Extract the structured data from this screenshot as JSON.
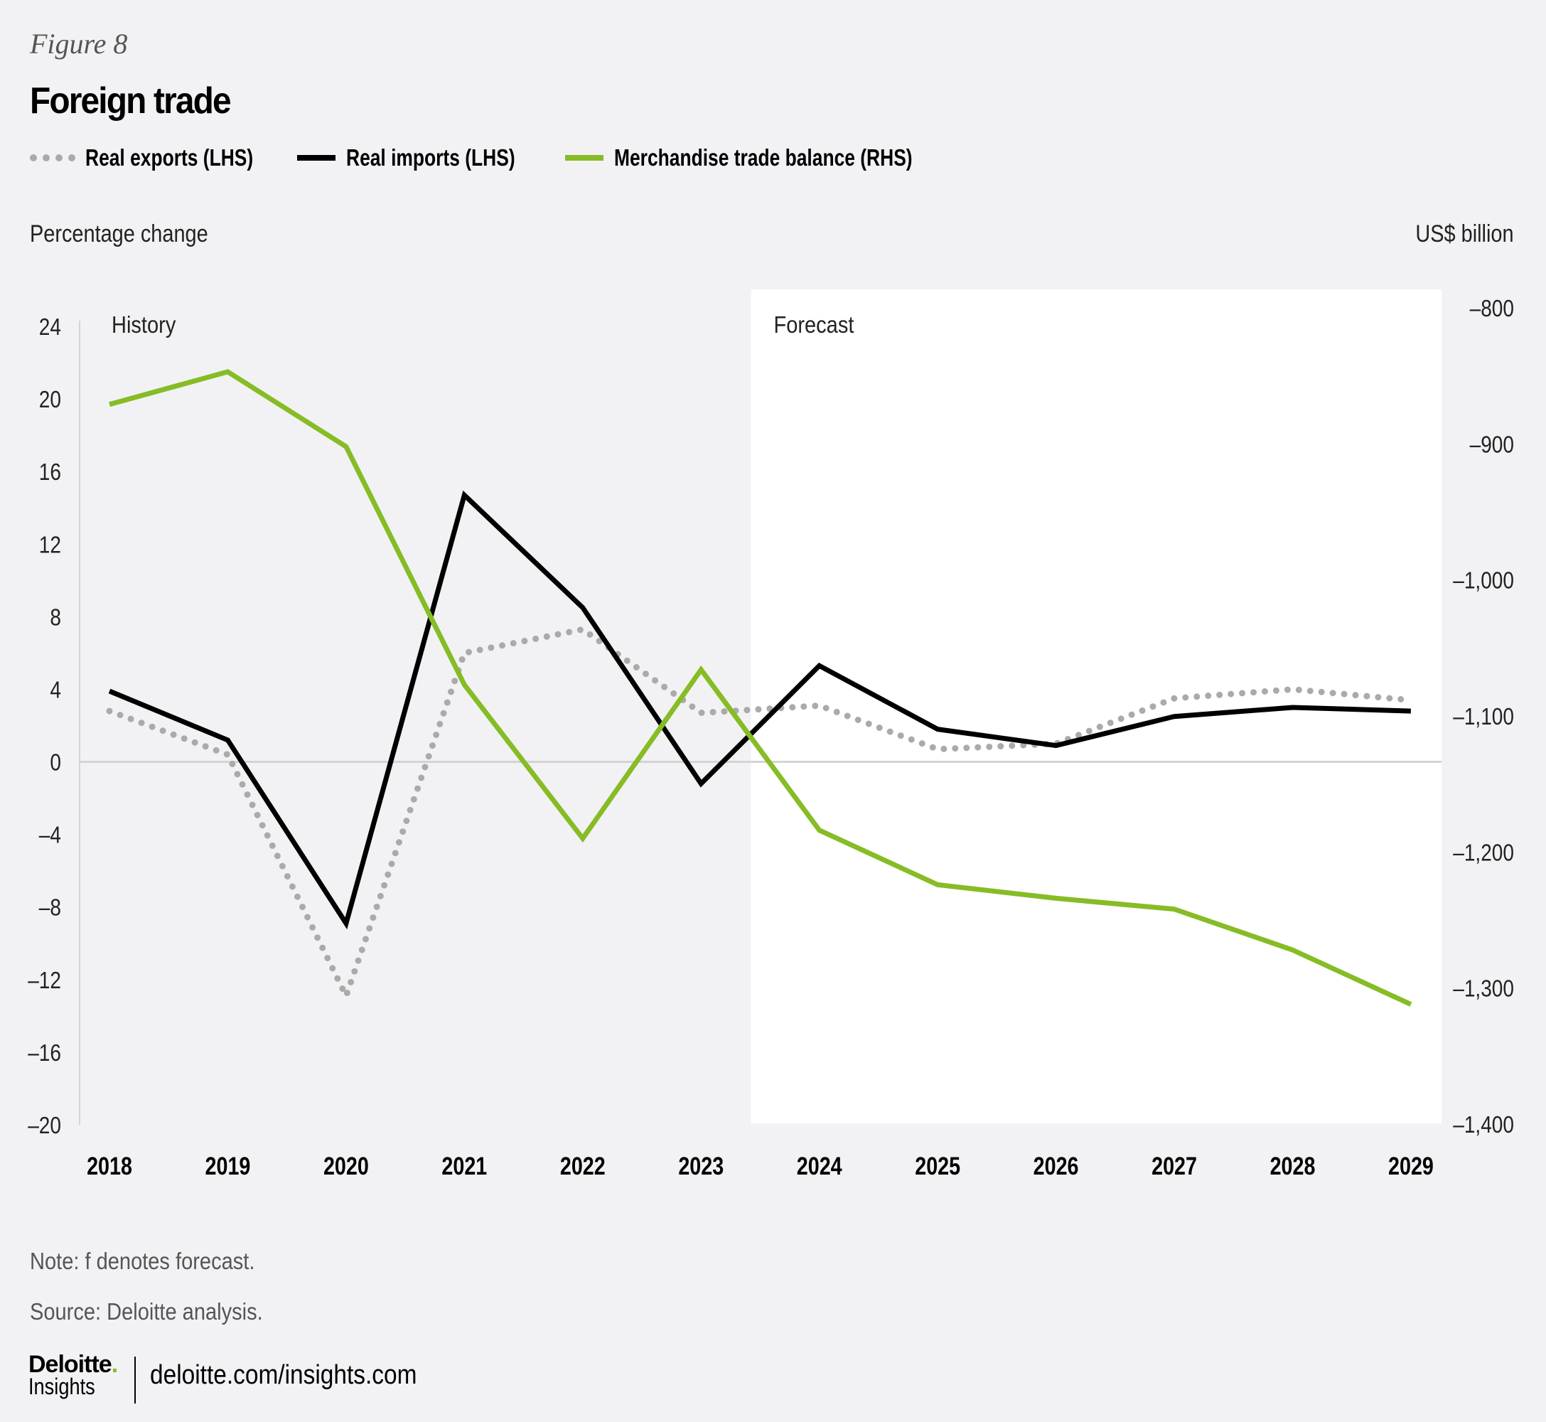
{
  "header": {
    "figure_label": "Figure 8",
    "title": "Foreign trade"
  },
  "legend": [
    {
      "label": "Real exports (LHS)",
      "style": "dotted",
      "color": "#aaaaaa"
    },
    {
      "label": "Real imports (LHS)",
      "style": "solid",
      "color": "#000000"
    },
    {
      "label": "Merchandise trade balance (RHS)",
      "style": "solid",
      "color": "#86bc25"
    }
  ],
  "axis_titles": {
    "left": "Percentage change",
    "right": "US$ billion"
  },
  "region_labels": {
    "history": "History",
    "forecast": "Forecast"
  },
  "chart_data": {
    "type": "line",
    "title": "Foreign trade",
    "x": [
      "2018",
      "2019",
      "2020",
      "2021",
      "2022",
      "2023",
      "2024",
      "2025",
      "2026",
      "2027",
      "2028",
      "2029"
    ],
    "forecast_start": "2024",
    "left_axis": {
      "label": "Percentage change",
      "ylim": [
        -20,
        24
      ],
      "ticks": [
        24,
        20,
        16,
        12,
        8,
        4,
        0,
        -4,
        -8,
        -12,
        -16,
        -20
      ],
      "tick_labels": [
        "24",
        "20",
        "16",
        "12",
        "8",
        "4",
        "0",
        "–4",
        "–8",
        "–12",
        "–16",
        "–20"
      ]
    },
    "right_axis": {
      "label": "US$ billion",
      "ylim": [
        -1400,
        -800
      ],
      "ticks": [
        -800,
        -900,
        -1000,
        -1100,
        -1200,
        -1300,
        -1400
      ],
      "tick_labels": [
        "–800",
        "–900",
        "–1,000",
        "–1,100",
        "–1,200",
        "–1,300",
        "–1,400"
      ]
    },
    "series": [
      {
        "name": "Real exports (LHS)",
        "axis": "left",
        "color": "#aaaaaa",
        "style": "dotted",
        "values": [
          2.8,
          0.4,
          -12.9,
          6.0,
          7.3,
          2.7,
          3.1,
          0.7,
          1.0,
          3.5,
          4.0,
          3.4
        ]
      },
      {
        "name": "Real imports (LHS)",
        "axis": "left",
        "color": "#000000",
        "style": "solid",
        "values": [
          3.9,
          1.2,
          -8.9,
          14.7,
          8.5,
          -1.2,
          5.3,
          1.8,
          0.9,
          2.5,
          3.0,
          2.8
        ]
      },
      {
        "name": "Merchandise trade balance (RHS)",
        "axis": "right",
        "color": "#86bc25",
        "style": "solid",
        "values": [
          -871,
          -847,
          -902,
          -1077,
          -1190,
          -1066,
          -1184,
          -1224,
          -1234,
          -1242,
          -1272,
          -1312
        ]
      }
    ],
    "zero_line": true,
    "legend_position": "top-left"
  },
  "footer": {
    "note": "Note: f denotes forecast.",
    "source": "Source: Deloitte analysis.",
    "logo_main": "Deloitte",
    "logo_dot": ".",
    "logo_sub": "Insights",
    "url": "deloitte.com/insights.com"
  }
}
